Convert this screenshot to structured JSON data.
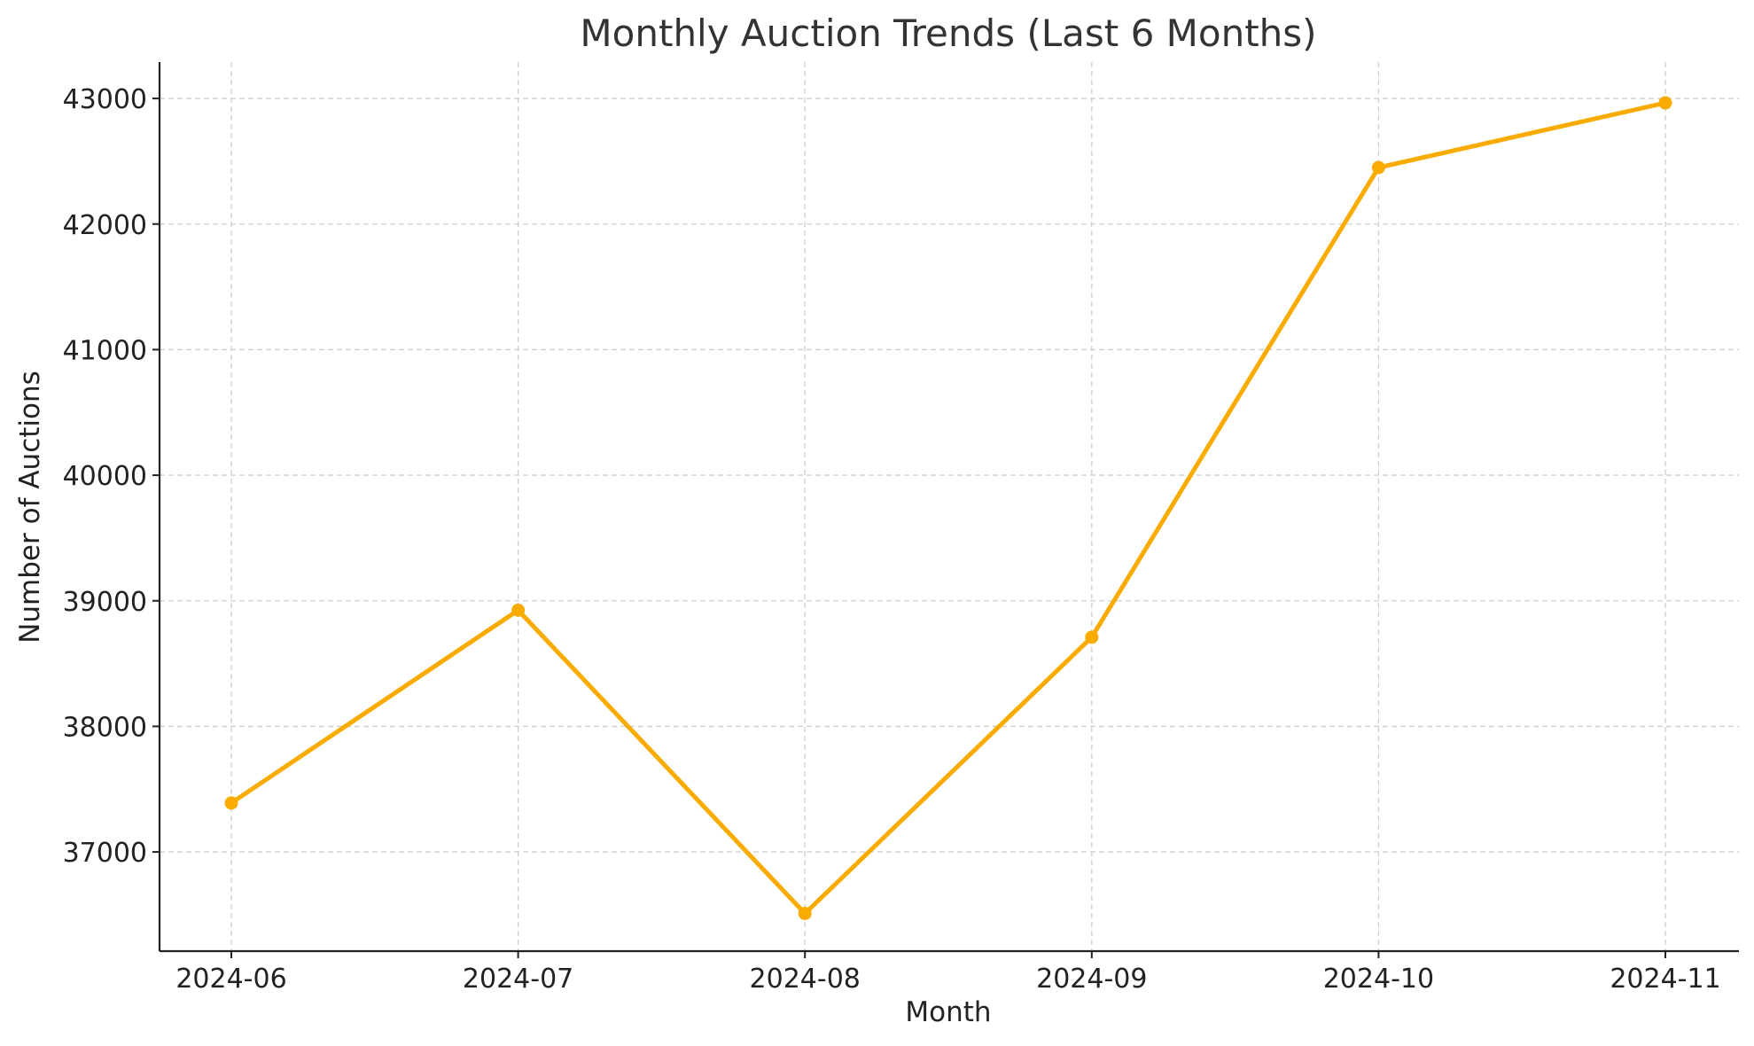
{
  "chart_data": {
    "type": "line",
    "title": "Monthly Auction Trends (Last 6 Months)",
    "xlabel": "Month",
    "ylabel": "Number of Auctions",
    "categories": [
      "2024-06",
      "2024-07",
      "2024-08",
      "2024-09",
      "2024-10",
      "2024-11"
    ],
    "series": [
      {
        "values": [
          37390,
          38925,
          36510,
          38710,
          42450,
          42965
        ],
        "color": "#F9AB00",
        "marker": "circle"
      }
    ],
    "yticks": [
      37000,
      38000,
      39000,
      40000,
      41000,
      42000,
      43000
    ],
    "ylim": [
      36210,
      43290
    ],
    "grid": true,
    "legend": "none"
  }
}
